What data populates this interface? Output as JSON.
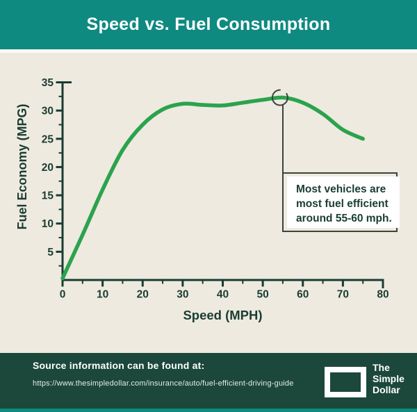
{
  "header": {
    "title": "Speed vs. Fuel Consumption"
  },
  "chart_data": {
    "type": "line",
    "title": "Speed vs. Fuel Consumption",
    "xlabel": "Speed (MPH)",
    "ylabel": "Fuel Economy (MPG)",
    "xlim": [
      0,
      80
    ],
    "ylim": [
      0,
      36
    ],
    "grid": false,
    "legend": "none",
    "x_major_ticks": [
      0,
      10,
      20,
      30,
      40,
      50,
      60,
      70,
      80
    ],
    "x_minor_step": 5,
    "y_major_ticks": [
      5,
      10,
      15,
      20,
      25,
      30,
      35
    ],
    "y_minor_step": 2.5,
    "series": [
      {
        "name": "fuel-economy-curve",
        "x": [
          0,
          5,
          10,
          15,
          20,
          25,
          30,
          35,
          40,
          45,
          50,
          55,
          60,
          65,
          70,
          75
        ],
        "y": [
          0.3,
          8,
          16,
          23,
          27.5,
          30.2,
          31.2,
          31.0,
          30.9,
          31.4,
          31.9,
          32.3,
          31.4,
          29.4,
          26.6,
          25.0
        ]
      }
    ],
    "annotation_marker": {
      "x": 54.3,
      "y": 32.3
    }
  },
  "annotation_box": {
    "line1": "Most vehicles are",
    "line2": "most fuel efficient",
    "line3": "around 55-60 mph."
  },
  "footer": {
    "source_label": "Source information can be found at:",
    "source_url": "https://www.thesimpledollar.com/insurance/auto/fuel-efficient-driving-guide",
    "logo_lines": [
      "The",
      "Simple",
      "Dollar"
    ]
  },
  "colors": {
    "header_bg": "#0f8a80",
    "chart_bg": "#eeeadf",
    "line_green": "#2ba34e",
    "axis_dark": "#1a3c33",
    "footer_bg": "#1b483b",
    "annotation_border": "#39433e"
  }
}
